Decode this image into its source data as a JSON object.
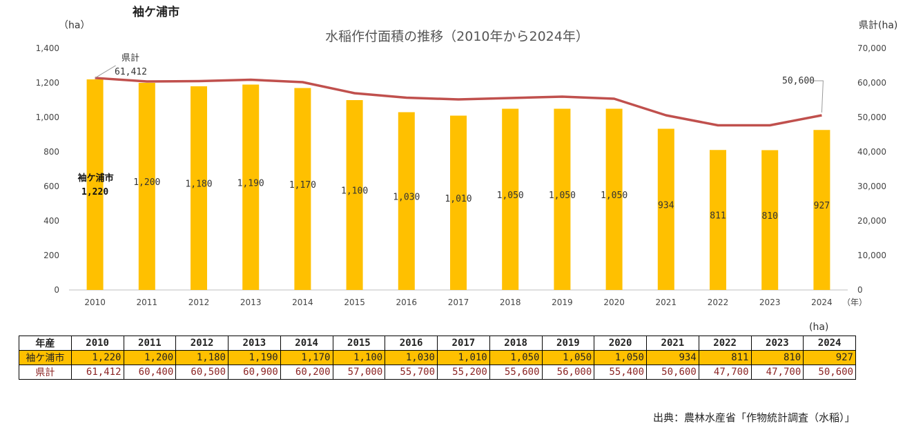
{
  "header": {
    "city_title": "袖ケ浦市",
    "chart_title": "水稲作付面積の推移（2010年から2024年）",
    "unit_left": "（ha）",
    "unit_right": "県計(ha)"
  },
  "chart_data": {
    "type": "bar",
    "title": "水稲作付面積の推移（2010年から2024年）",
    "categories": [
      "2010",
      "2011",
      "2012",
      "2013",
      "2014",
      "2015",
      "2016",
      "2017",
      "2018",
      "2019",
      "2020",
      "2021",
      "2022",
      "2023",
      "2024"
    ],
    "x_unit": "（年）",
    "series": [
      {
        "name": "袖ケ浦市",
        "type": "bar",
        "axis": "left",
        "color": "#FFC000",
        "values": [
          1220,
          1200,
          1180,
          1190,
          1170,
          1100,
          1030,
          1010,
          1050,
          1050,
          1050,
          934,
          811,
          810,
          927
        ],
        "labels": [
          "1,220",
          "1,200",
          "1,180",
          "1,190",
          "1,170",
          "1,100",
          "1,030",
          "1,010",
          "1,050",
          "1,050",
          "1,050",
          "934",
          "811",
          "810",
          "927"
        ]
      },
      {
        "name": "県計",
        "type": "line",
        "axis": "right",
        "color": "#C0504D",
        "values": [
          61412,
          60400,
          60500,
          60900,
          60200,
          57000,
          55700,
          55200,
          55600,
          56000,
          55400,
          50600,
          47700,
          47700,
          50600
        ]
      }
    ],
    "left_axis": {
      "range": [
        0,
        1400
      ],
      "ticks": [
        "0",
        "200",
        "400",
        "600",
        "800",
        "1,000",
        "1,200",
        "1,400"
      ]
    },
    "right_axis": {
      "range": [
        0,
        70000
      ],
      "ticks": [
        "0",
        "10,000",
        "20,000",
        "30,000",
        "40,000",
        "50,000",
        "60,000",
        "70,000"
      ]
    },
    "annotations": {
      "first_bar_label": "袖ケ浦市",
      "first_bar_value": "1,220",
      "line_start_label": "県計",
      "line_start_value": "61,412",
      "line_end_value": "50,600"
    }
  },
  "table": {
    "unit": "(ha)",
    "header_label": "年産",
    "years": [
      "2010",
      "2011",
      "2012",
      "2013",
      "2014",
      "2015",
      "2016",
      "2017",
      "2018",
      "2019",
      "2020",
      "2021",
      "2022",
      "2023",
      "2024"
    ],
    "city_label": "袖ケ浦市",
    "city_values": [
      "1,220",
      "1,200",
      "1,180",
      "1,190",
      "1,170",
      "1,100",
      "1,030",
      "1,010",
      "1,050",
      "1,050",
      "1,050",
      "934",
      "811",
      "810",
      "927"
    ],
    "pref_label": "県計",
    "pref_values": [
      "61,412",
      "60,400",
      "60,500",
      "60,900",
      "60,200",
      "57,000",
      "55,700",
      "55,200",
      "55,600",
      "56,000",
      "55,400",
      "50,600",
      "47,700",
      "47,700",
      "50,600"
    ]
  },
  "footer": {
    "source": "出典：農林水産省「作物統計調査（水稲）」"
  }
}
